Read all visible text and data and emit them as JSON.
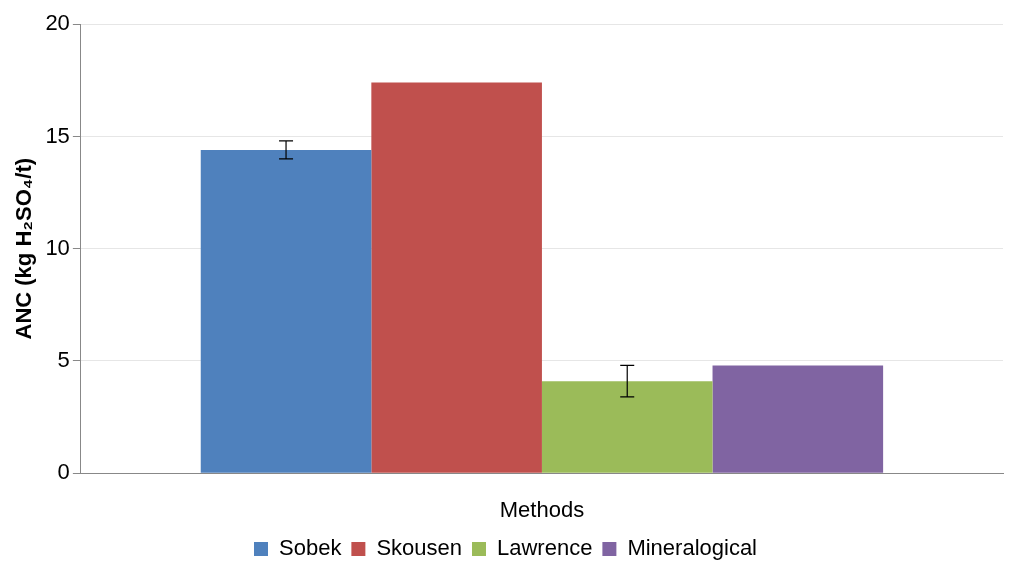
{
  "chart_data": {
    "type": "bar",
    "xlabel": "Methods",
    "ylabel": "ANC (kg H₂SO₄/t)",
    "categories": [
      null
    ],
    "series": [
      {
        "name": "Sobek",
        "color": "#4f81bd",
        "values": [
          14.4
        ],
        "errors": [
          0.4
        ]
      },
      {
        "name": "Skousen",
        "color": "#c0504d",
        "values": [
          17.4
        ],
        "errors": [
          null
        ]
      },
      {
        "name": "Lawrence",
        "color": "#9bbb59",
        "values": [
          4.1
        ],
        "errors": [
          0.7
        ]
      },
      {
        "name": "Mineralogical",
        "color": "#8064a2",
        "values": [
          4.8
        ],
        "errors": [
          null
        ]
      }
    ],
    "ylim": [
      0,
      20
    ],
    "yticks": [
      0,
      5,
      10,
      15,
      20
    ],
    "grid": "y",
    "legend": "bottom"
  }
}
